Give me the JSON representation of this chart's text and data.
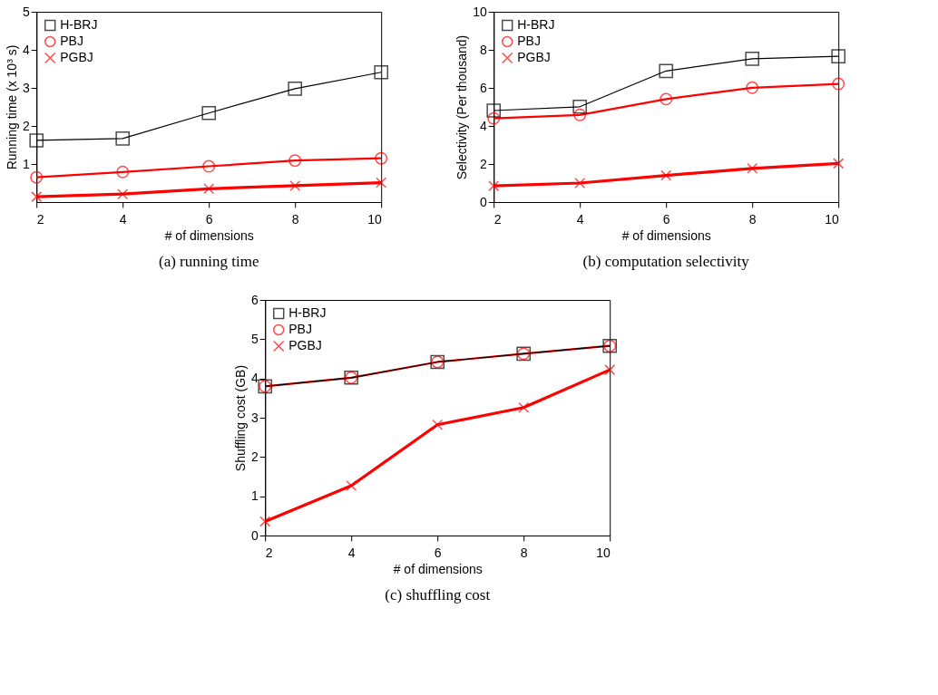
{
  "chart_data": [
    {
      "type": "line",
      "title": "(a) running time",
      "xlabel": "# of dimensions",
      "ylabel": "Running time (x 10³ s)",
      "x": [
        2,
        4,
        6,
        8,
        10
      ],
      "xlim": [
        2,
        10
      ],
      "xticks": [
        2,
        4,
        6,
        8,
        10
      ],
      "ylim": [
        0,
        5
      ],
      "yticks": [
        1,
        2,
        3,
        4,
        5
      ],
      "grid": false,
      "legend": "top left",
      "line_style": "solid",
      "series": [
        {
          "name": "H-BRJ",
          "color": "#000000",
          "marker": "square",
          "values": [
            1.62,
            1.67,
            2.34,
            2.98,
            3.41
          ]
        },
        {
          "name": "PBJ",
          "color": "#ff0000",
          "marker": "circle",
          "values": [
            0.65,
            0.79,
            0.94,
            1.09,
            1.15
          ]
        },
        {
          "name": "PGBJ",
          "color": "#ff0000",
          "marker": "cross",
          "values": [
            0.14,
            0.21,
            0.35,
            0.43,
            0.51
          ]
        }
      ]
    },
    {
      "type": "line",
      "title": "(b) computation selectivity",
      "xlabel": "# of dimensions",
      "ylabel": "Selectivity (Per thousand)",
      "x": [
        2,
        4,
        6,
        8,
        10
      ],
      "xlim": [
        2,
        10
      ],
      "xticks": [
        2,
        4,
        6,
        8,
        10
      ],
      "ylim": [
        0,
        10
      ],
      "yticks": [
        0,
        2,
        4,
        6,
        8,
        10
      ],
      "grid": false,
      "legend": "top left",
      "line_style": "solid",
      "series": [
        {
          "name": "H-BRJ",
          "color": "#000000",
          "marker": "square",
          "values": [
            4.81,
            5.01,
            6.89,
            7.53,
            7.66
          ]
        },
        {
          "name": "PBJ",
          "color": "#ff0000",
          "marker": "circle",
          "values": [
            4.4,
            4.58,
            5.41,
            6.01,
            6.21
          ]
        },
        {
          "name": "PGBJ",
          "color": "#ff0000",
          "marker": "cross",
          "values": [
            0.85,
            1.0,
            1.4,
            1.77,
            2.03
          ]
        }
      ]
    },
    {
      "type": "line",
      "title": "(c) shuffling cost",
      "xlabel": "# of dimensions",
      "ylabel": "Shuffling cost (GB)",
      "x": [
        2,
        4,
        6,
        8,
        10
      ],
      "xlim": [
        2,
        10
      ],
      "xticks": [
        2,
        4,
        6,
        8,
        10
      ],
      "ylim": [
        0,
        6
      ],
      "yticks": [
        0,
        1,
        2,
        3,
        4,
        5,
        6
      ],
      "grid": false,
      "legend": "top left",
      "line_style": "solid",
      "series": [
        {
          "name": "H-BRJ",
          "color": "#000000",
          "marker": "square",
          "values": [
            3.8,
            4.02,
            4.42,
            4.63,
            4.83
          ]
        },
        {
          "name": "PBJ",
          "color": "#ff0000",
          "marker": "circle",
          "values": [
            3.8,
            4.02,
            4.42,
            4.63,
            4.83
          ]
        },
        {
          "name": "PGBJ",
          "color": "#ff0000",
          "marker": "cross",
          "values": [
            0.36,
            1.27,
            2.82,
            3.26,
            4.22
          ]
        }
      ]
    }
  ]
}
